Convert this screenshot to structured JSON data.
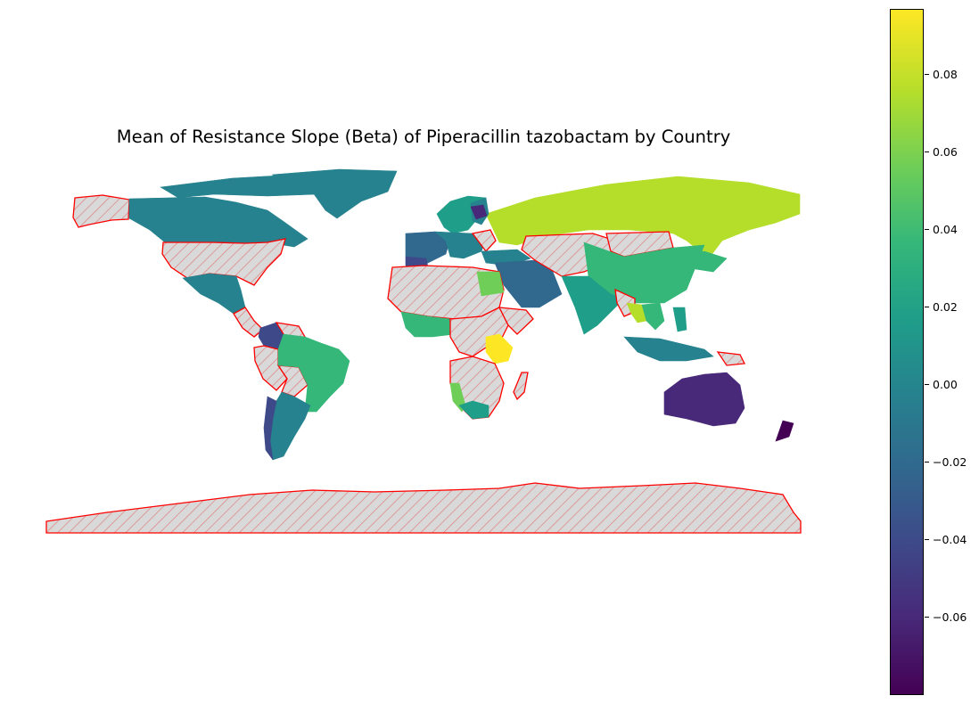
{
  "title": "Mean of Resistance Slope (Beta) of Piperacillin tazobactam by Country",
  "colorbar": {
    "colormap": "viridis",
    "min": -0.08,
    "max": 0.097,
    "ticks": [
      "0.08",
      "0.06",
      "0.04",
      "0.02",
      "0.00",
      "−0.02",
      "−0.04",
      "−0.06"
    ]
  },
  "colors": {
    "missing_fill": "#d9d9d9",
    "missing_edge": "#ff0000"
  },
  "chart_data": {
    "type": "choropleth",
    "title": "Mean of Resistance Slope (Beta) of Piperacillin tazobactam by Country",
    "value_range": [
      -0.08,
      0.097
    ],
    "missing_data_style": "grey fill with red edge and diagonal hatching",
    "approx_values": {
      "Russia": 0.085,
      "Canada": 0.0,
      "Greenland": 0.0,
      "Mexico": 0.0,
      "Brazil": 0.03,
      "Argentina": 0.0,
      "Colombia": -0.04,
      "China": 0.03,
      "India": 0.01,
      "Australia": -0.065,
      "New Zealand": -0.075,
      "Saudi Arabia": -0.02,
      "Egypt": 0.05,
      "Kenya": 0.097,
      "Namibia": 0.055,
      "South Africa": 0.01,
      "Nigeria": 0.04,
      "France": -0.03,
      "Spain": -0.04,
      "Norway": 0.0,
      "Sweden": 0.01,
      "Finland": 0.0,
      "Belarus": -0.06,
      "Thailand": 0.085,
      "Indonesia": 0.0,
      "Philippines": 0.02
    }
  }
}
